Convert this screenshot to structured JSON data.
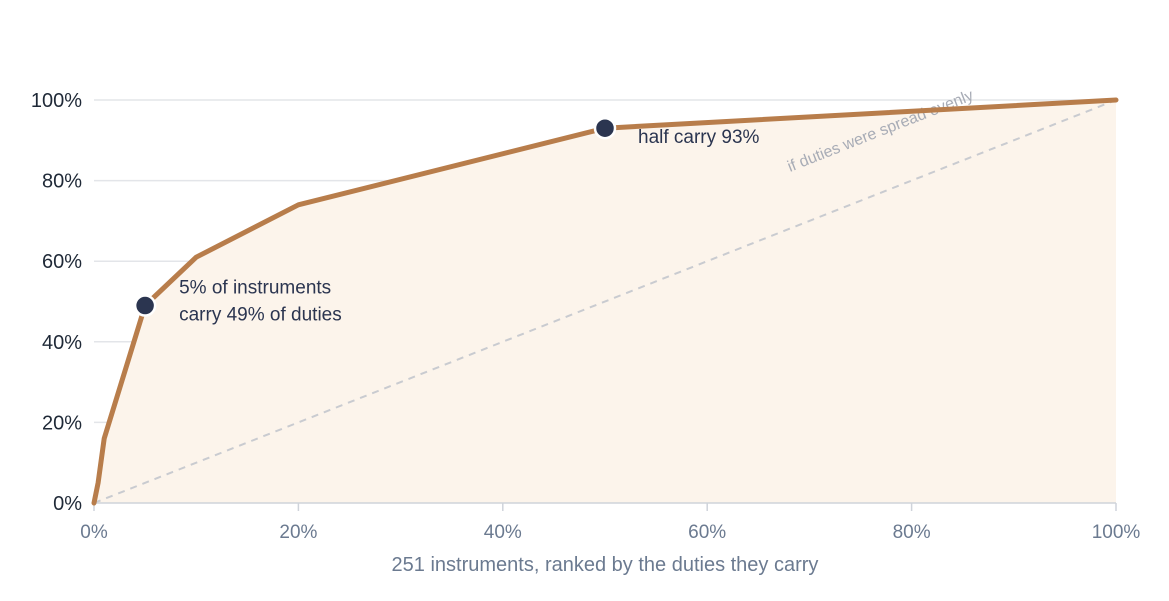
{
  "chart_data": {
    "type": "line",
    "title": "",
    "xlabel": "251 instruments, ranked by the duties they carry",
    "ylabel": "",
    "xlim": [
      0,
      100
    ],
    "ylim": [
      0,
      100
    ],
    "x_ticks": [
      "0%",
      "20%",
      "40%",
      "60%",
      "80%",
      "100%"
    ],
    "y_ticks": [
      "0%",
      "20%",
      "40%",
      "60%",
      "80%",
      "100%"
    ],
    "grid": "horizontal",
    "series": [
      {
        "color": "#b87d4b",
        "fill": "#fcf4eb",
        "x": [
          0,
          0.4,
          1,
          5,
          10,
          20,
          50,
          100
        ],
        "y": [
          0,
          5,
          16,
          49,
          61,
          74,
          93,
          100
        ]
      }
    ],
    "reference_line": {
      "label": "if duties were spread evenly",
      "x": [
        0,
        100
      ],
      "y": [
        0,
        100
      ],
      "color": "#c9cbd0"
    },
    "annotations": [
      {
        "x": 5,
        "y": 49,
        "lines": [
          "5% of instruments",
          "carry 49% of duties"
        ]
      },
      {
        "x": 50,
        "y": 93,
        "lines": [
          "half carry 93%"
        ]
      }
    ],
    "colors": {
      "marker": "#2b3550",
      "grid": "#e3e5e9",
      "axis": "#cfd3da"
    }
  }
}
